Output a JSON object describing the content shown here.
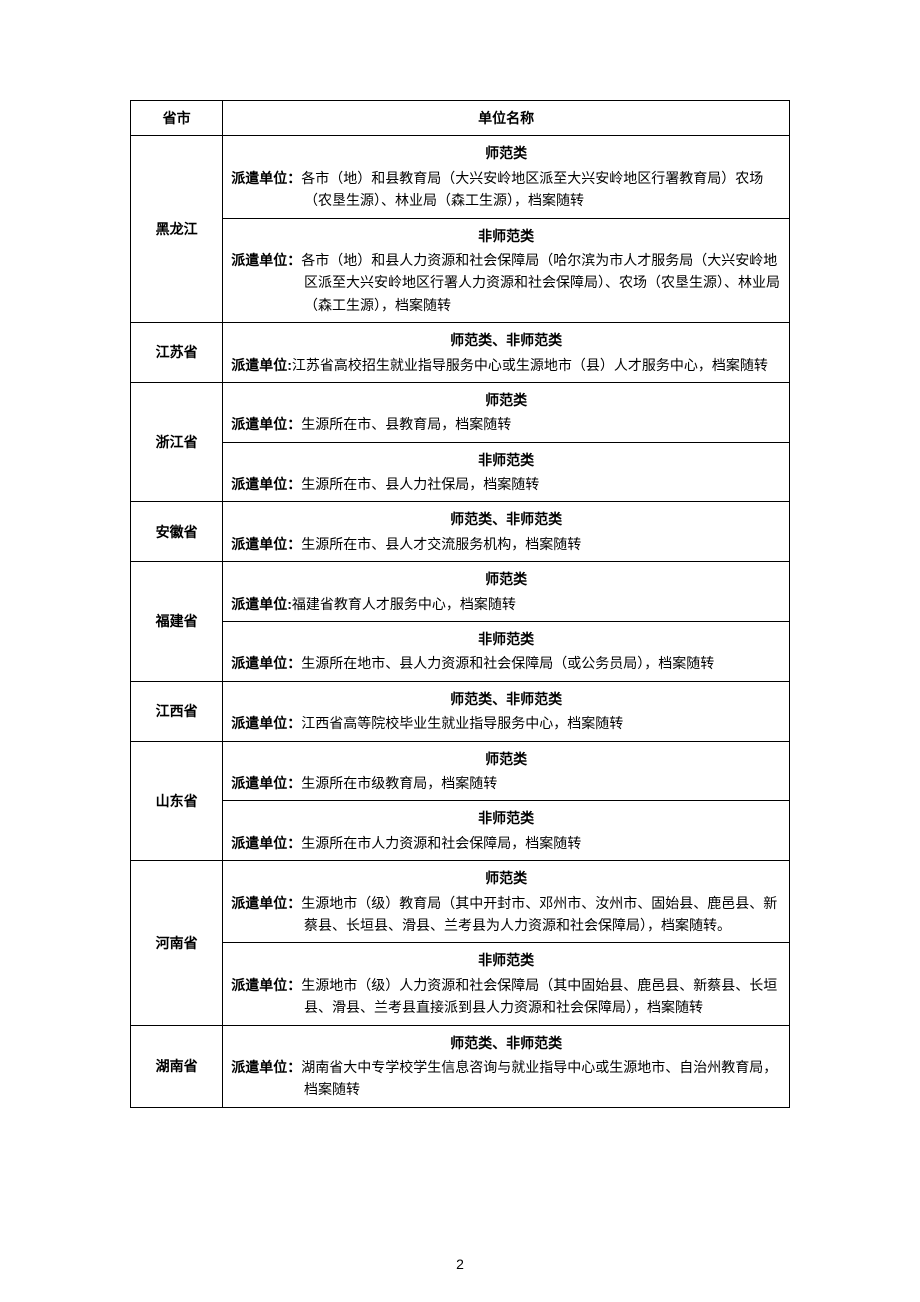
{
  "header": {
    "province": "省市",
    "unit": "单位名称"
  },
  "labels": {
    "dispatch": "派遣单位：",
    "dispatch_alt": "派遣单位:",
    "normal": "师范类",
    "nonnormal": "非师范类",
    "both": "师范类、非师范类"
  },
  "rows": [
    {
      "province": "黑龙江",
      "cells": [
        {
          "cat": "normal",
          "label_key": "dispatch",
          "text": "各市（地）和县教育局（大兴安岭地区派至大兴安岭地区行署教育局）农场（农垦生源）、林业局（森工生源），档案随转"
        },
        {
          "cat": "nonnormal",
          "label_key": "dispatch",
          "text": "各市（地）和县人力资源和社会保障局（哈尔滨为市人才服务局（大兴安岭地区派至大兴安岭地区行署人力资源和社会保障局）、农场（农垦生源）、林业局（森工生源），档案随转"
        }
      ]
    },
    {
      "province": "江苏省",
      "cells": [
        {
          "cat": "both",
          "label_key": "dispatch_alt",
          "text": "江苏省高校招生就业指导服务中心或生源地市（县）人才服务中心，档案随转"
        }
      ]
    },
    {
      "province": "浙江省",
      "cells": [
        {
          "cat": "normal",
          "label_key": "dispatch",
          "text": "生源所在市、县教育局，档案随转"
        },
        {
          "cat": "nonnormal",
          "label_key": "dispatch",
          "text": "生源所在市、县人力社保局，档案随转"
        }
      ]
    },
    {
      "province": "安徽省",
      "cells": [
        {
          "cat": "both",
          "label_key": "dispatch",
          "text": "生源所在市、县人才交流服务机构，档案随转"
        }
      ]
    },
    {
      "province": "福建省",
      "cells": [
        {
          "cat": "normal",
          "label_key": "dispatch_alt",
          "text": "福建省教育人才服务中心，档案随转"
        },
        {
          "cat": "nonnormal",
          "label_key": "dispatch",
          "text": "生源所在地市、县人力资源和社会保障局（或公务员局），档案随转"
        }
      ]
    },
    {
      "province": "江西省",
      "cells": [
        {
          "cat": "both",
          "label_key": "dispatch",
          "text": "江西省高等院校毕业生就业指导服务中心，档案随转"
        }
      ]
    },
    {
      "province": "山东省",
      "cells": [
        {
          "cat": "normal",
          "label_key": "dispatch",
          "text": "生源所在市级教育局，档案随转"
        },
        {
          "cat": "nonnormal",
          "label_key": "dispatch",
          "text": "生源所在市人力资源和社会保障局，档案随转"
        }
      ]
    },
    {
      "province": "河南省",
      "cells": [
        {
          "cat": "normal",
          "label_key": "dispatch",
          "text": "生源地市（级）教育局（其中开封市、邓州市、汝州市、固始县、鹿邑县、新蔡县、长垣县、滑县、兰考县为人力资源和社会保障局），档案随转。"
        },
        {
          "cat": "nonnormal",
          "label_key": "dispatch",
          "text": "生源地市（级）人力资源和社会保障局（其中固始县、鹿邑县、新蔡县、长垣县、滑县、兰考县直接派到县人力资源和社会保障局），档案随转"
        }
      ]
    },
    {
      "province": "湖南省",
      "cells": [
        {
          "cat": "both",
          "label_key": "dispatch",
          "text": "湖南省大中专学校学生信息咨询与就业指导中心或生源地市、自治州教育局，档案随转"
        }
      ]
    }
  ],
  "page_number": "2"
}
